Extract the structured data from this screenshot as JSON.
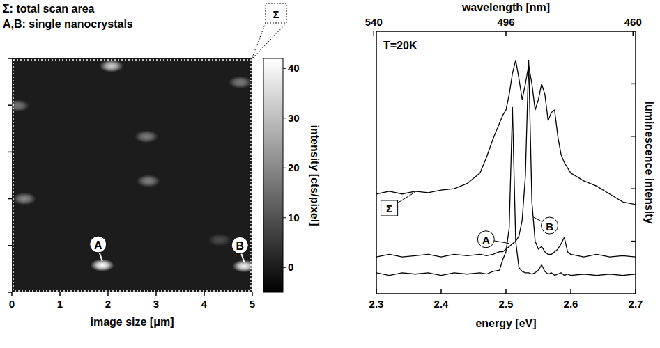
{
  "chart_data": [
    {
      "type": "heatmap",
      "title": "Σ:  total scan area",
      "subtitle": "A,B: single nanocrystals",
      "x_label": "image size [μm]",
      "xlim": [
        0,
        5
      ],
      "xticks": [
        0,
        1,
        2,
        3,
        4,
        5
      ],
      "ylim": [
        0,
        5
      ],
      "yticks": [
        0,
        1,
        2,
        3,
        4,
        5
      ],
      "tick_labels": "x",
      "region_label": "Σ",
      "spots": [
        {
          "x": 2.07,
          "y": 4.84,
          "intensity": 33
        },
        {
          "x": 4.75,
          "y": 4.49,
          "intensity": 18
        },
        {
          "x": 0.12,
          "y": 3.99,
          "intensity": 17
        },
        {
          "x": 2.8,
          "y": 3.33,
          "intensity": 18
        },
        {
          "x": 2.84,
          "y": 2.38,
          "intensity": 19
        },
        {
          "x": 0.26,
          "y": 2.0,
          "intensity": 20
        },
        {
          "x": 4.32,
          "y": 1.12,
          "intensity": 9
        },
        {
          "x": 1.88,
          "y": 0.58,
          "intensity": 42,
          "label": "A"
        },
        {
          "x": 4.83,
          "y": 0.56,
          "intensity": 40,
          "label": "B"
        }
      ],
      "colorbar_label": "intensity [cts/pixel]",
      "colorbar_range": [
        -5,
        42
      ],
      "colorbar_ticks": [
        0,
        10,
        20,
        30,
        40
      ]
    },
    {
      "type": "line",
      "annotation": "T=20K",
      "x_label": "energy [eV]",
      "x2_label": "wavelength [nm]",
      "y_label": "luminescence intensity",
      "xlim": [
        2.3,
        2.7
      ],
      "xticks": [
        2.3,
        2.4,
        2.5,
        2.6,
        2.7
      ],
      "x2ticks": [
        {
          "value": 2.296,
          "label": "540"
        },
        {
          "value": 2.5,
          "label": "496"
        },
        {
          "value": 2.696,
          "label": "460"
        }
      ],
      "ylim": [
        0,
        10
      ],
      "yticks": [
        2,
        4,
        6,
        8
      ],
      "tick_labels": "x",
      "x": [
        2.3,
        2.32,
        2.34,
        2.36,
        2.38,
        2.4,
        2.42,
        2.44,
        2.46,
        2.47,
        2.48,
        2.49,
        2.495,
        2.5,
        2.505,
        2.51,
        2.515,
        2.52,
        2.525,
        2.53,
        2.535,
        2.54,
        2.545,
        2.55,
        2.555,
        2.56,
        2.565,
        2.57,
        2.575,
        2.58,
        2.585,
        2.59,
        2.595,
        2.6,
        2.62,
        2.64,
        2.66,
        2.68,
        2.7
      ],
      "series": [
        {
          "name": "Σ",
          "color": "#000000",
          "values": [
            3.8,
            3.9,
            3.8,
            3.9,
            3.85,
            3.95,
            4.0,
            4.2,
            4.6,
            5.2,
            5.9,
            6.5,
            6.8,
            7.0,
            7.6,
            8.4,
            8.9,
            8.2,
            7.4,
            8.0,
            8.7,
            8.0,
            7.0,
            7.4,
            8.0,
            7.6,
            6.6,
            6.9,
            7.0,
            6.0,
            5.3,
            5.0,
            4.8,
            4.6,
            4.3,
            4.1,
            3.8,
            3.5,
            3.4
          ]
        },
        {
          "name": "A",
          "color": "#000000",
          "values": [
            0.8,
            0.7,
            0.8,
            0.75,
            0.8,
            0.7,
            0.8,
            0.75,
            0.8,
            0.75,
            0.85,
            0.9,
            1.3,
            1.6,
            2.5,
            7.1,
            2.0,
            1.0,
            0.85,
            0.8,
            0.8,
            0.75,
            0.8,
            0.9,
            1.1,
            0.85,
            0.75,
            0.8,
            0.7,
            0.75,
            0.8,
            0.7,
            0.75,
            0.7,
            0.75,
            0.7,
            0.75,
            0.7,
            0.75
          ]
        },
        {
          "name": "B",
          "color": "#000000",
          "values": [
            1.4,
            1.5,
            1.4,
            1.45,
            1.5,
            1.4,
            1.5,
            1.45,
            1.5,
            1.45,
            1.5,
            1.6,
            1.6,
            1.7,
            1.8,
            1.9,
            2.0,
            2.2,
            2.8,
            4.5,
            8.9,
            3.5,
            2.0,
            1.7,
            1.8,
            1.6,
            1.5,
            1.5,
            1.6,
            1.7,
            1.9,
            2.15,
            1.6,
            1.5,
            1.4,
            1.5,
            1.4,
            1.45,
            1.4
          ]
        }
      ]
    }
  ]
}
